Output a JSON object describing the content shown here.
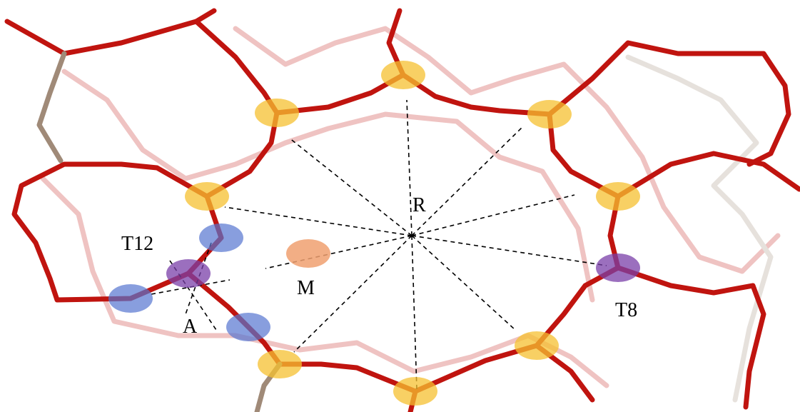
{
  "labels": {
    "r": "R",
    "t12": "T12",
    "m": "M",
    "a": "A",
    "t8": "T8"
  }
}
